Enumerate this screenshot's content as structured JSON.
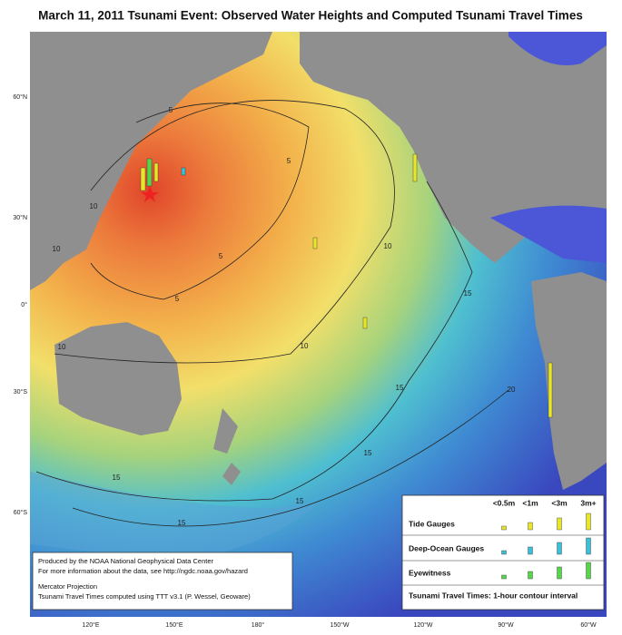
{
  "title": "March 11, 2011 Tsunami Event: Observed Water Heights and Computed Tsunami Travel Times",
  "latitude_labels": [
    "60°N",
    "30°N",
    "0°",
    "30°S",
    "60°S"
  ],
  "longitude_labels": [
    "120°E",
    "150°E",
    "180°",
    "150°W",
    "120°W",
    "90°W",
    "60°W"
  ],
  "contour_labels": [
    "5",
    "5",
    "5",
    "5",
    "10",
    "10",
    "10",
    "10",
    "10",
    "15",
    "15",
    "15",
    "15",
    "15",
    "15",
    "20"
  ],
  "legend": {
    "columns": [
      "<0.5m",
      "<1m",
      "<3m",
      "3m+"
    ],
    "rows": [
      "Tide Gauges",
      "Deep-Ocean Gauges",
      "Eyewitness"
    ],
    "footer": "Tsunami Travel Times: 1-hour contour interval"
  },
  "credits": [
    "Produced by the NOAA National Geophysical Data Center",
    "For more information about the data, see http://ngdc.noaa.gov/hazard",
    "Mercator Projection",
    "Tsunami Travel Times computed using TTT v3.1 (P. Wessel, Geoware)"
  ]
}
